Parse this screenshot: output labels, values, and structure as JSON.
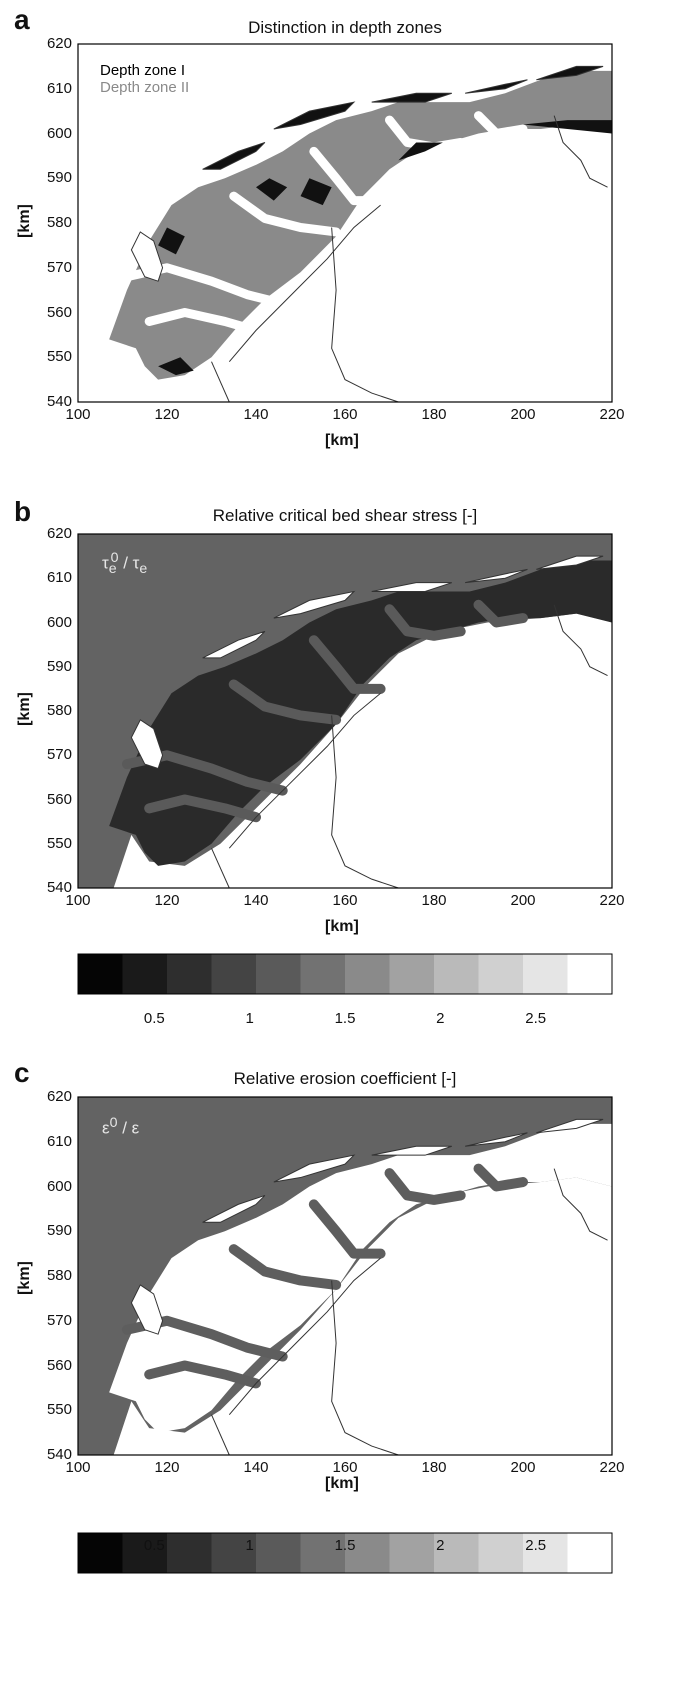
{
  "panels": [
    {
      "label": "a",
      "title": "Distinction in depth zones",
      "xlabel": "[km]",
      "ylabel": "[km]",
      "legend": [
        {
          "text": "Depth zone I",
          "color": "#000000"
        },
        {
          "text": "Depth zone II",
          "color": "#808080"
        }
      ],
      "inset_text": ""
    },
    {
      "label": "b",
      "title": "Relative critical bed shear stress [-]",
      "xlabel": "[km]",
      "ylabel": "[km]",
      "inset_text": "τe0 / τe",
      "inset_main": "τ",
      "inset_sup": "0",
      "inset_sub": "e",
      "inset_mid": " / τ",
      "inset_sub2": "e"
    },
    {
      "label": "c",
      "title": "Relative erosion coefficient [-]",
      "xlabel": "[km]",
      "ylabel": "[km]",
      "inset_text": "ε0 / ε",
      "inset_main": "ε",
      "inset_sup": "0",
      "inset_sub": "",
      "inset_mid": " / ε",
      "inset_sub2": ""
    }
  ],
  "axes": {
    "xlim": [
      100,
      220
    ],
    "ylim": [
      540,
      620
    ],
    "xticks": [
      "100",
      "120",
      "140",
      "160",
      "180",
      "200",
      "220"
    ],
    "yticks": [
      "540",
      "550",
      "560",
      "570",
      "580",
      "590",
      "600",
      "610",
      "620"
    ]
  },
  "colorbar": {
    "ticks": [
      "0.5",
      "1",
      "1.5",
      "2",
      "2.5"
    ],
    "levels": 12,
    "range": [
      0.1,
      2.9
    ],
    "colors": [
      "#050505",
      "#1a1a1a",
      "#2e2e2e",
      "#444444",
      "#5a5a5a",
      "#727272",
      "#8a8a8a",
      "#a2a2a2",
      "#bababa",
      "#d0d0d0",
      "#e5e5e5",
      "#ffffff"
    ]
  },
  "colors": {
    "sea": "#636363",
    "zone1": "#111111",
    "zone2": "#8a8a8a",
    "land": "#ffffff",
    "coast": "#333333"
  }
}
